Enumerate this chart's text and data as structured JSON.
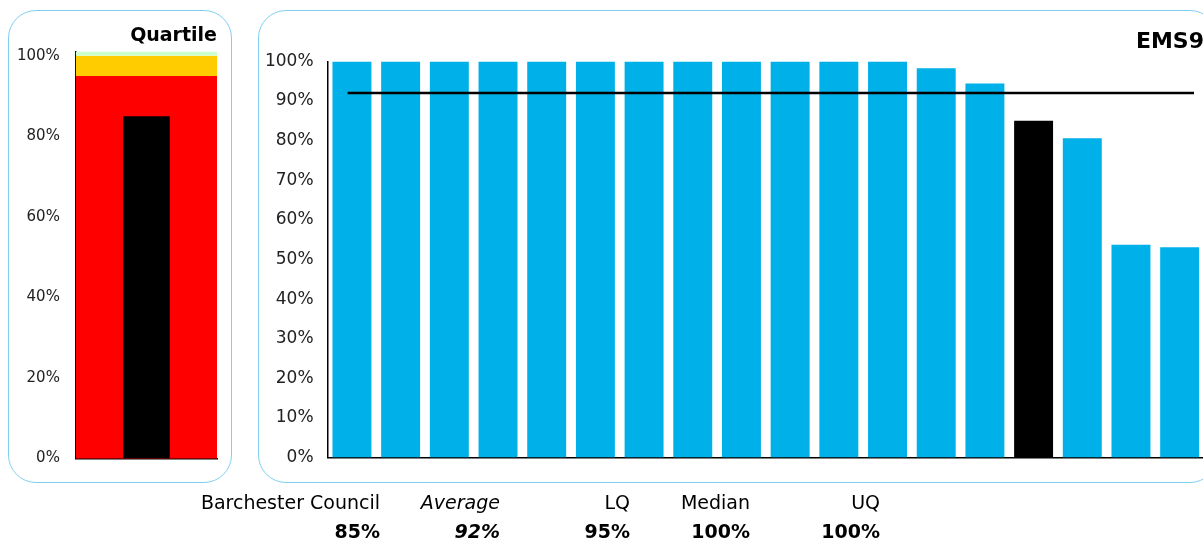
{
  "chart_data": [
    {
      "type": "bar",
      "title": "Quartile",
      "categories": [
        null
      ],
      "values": [
        85
      ],
      "color": "#000000",
      "bands": [
        {
          "axis": "y",
          "from": 0,
          "to": 95,
          "color": "#ff0000"
        },
        {
          "axis": "y",
          "from": 95,
          "to": 100,
          "color": "#ffcc00"
        },
        {
          "axis": "y",
          "from": 100,
          "to": 101,
          "color": "#ccffcc"
        }
      ],
      "ylim": [
        0,
        101
      ],
      "yticks": [
        {
          "value": 0,
          "label": "0%"
        },
        {
          "value": 20,
          "label": "20%"
        },
        {
          "value": 40,
          "label": "40%"
        },
        {
          "value": 60,
          "label": "60%"
        },
        {
          "value": 80,
          "label": "80%"
        },
        {
          "value": 100,
          "label": "100%"
        }
      ],
      "grid": false,
      "legend": false
    },
    {
      "type": "bar",
      "title": "EMS9",
      "categories": [
        null,
        null,
        null,
        null,
        null,
        null,
        null,
        null,
        null,
        null,
        null,
        null,
        null,
        null,
        null,
        null,
        null,
        null
      ],
      "values": [
        100,
        100,
        100,
        100,
        100,
        100,
        100,
        100,
        100,
        100,
        100,
        100,
        98.3,
        94.4,
        85,
        80.6,
        53.7,
        53.1
      ],
      "colors": [
        "#00b0e8",
        "#00b0e8",
        "#00b0e8",
        "#00b0e8",
        "#00b0e8",
        "#00b0e8",
        "#00b0e8",
        "#00b0e8",
        "#00b0e8",
        "#00b0e8",
        "#00b0e8",
        "#00b0e8",
        "#00b0e8",
        "#00b0e8",
        "#000000",
        "#00b0e8",
        "#00b0e8",
        "#00b0e8"
      ],
      "ref_lines": [
        {
          "axis": "y",
          "value": 92,
          "color": "#000000"
        }
      ],
      "ylim": [
        0,
        100
      ],
      "yticks": [
        {
          "value": 0,
          "label": "0%"
        },
        {
          "value": 10,
          "label": "10%"
        },
        {
          "value": 20,
          "label": "20%"
        },
        {
          "value": 30,
          "label": "30%"
        },
        {
          "value": 40,
          "label": "40%"
        },
        {
          "value": 50,
          "label": "50%"
        },
        {
          "value": 60,
          "label": "60%"
        },
        {
          "value": 70,
          "label": "70%"
        },
        {
          "value": 80,
          "label": "80%"
        },
        {
          "value": 90,
          "label": "90%"
        },
        {
          "value": 100,
          "label": "100%"
        }
      ],
      "grid": false,
      "legend": false,
      "annotations": [
        "Barchester Council",
        "Average",
        "LQ",
        "Median",
        "UQ",
        "85%",
        "92%",
        "95%",
        "100%",
        "100%"
      ]
    }
  ]
}
